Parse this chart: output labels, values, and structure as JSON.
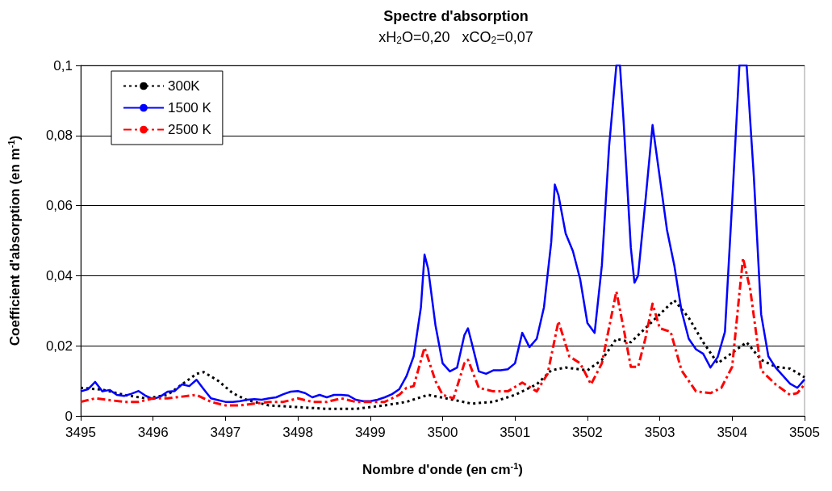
{
  "chart_data": {
    "type": "line",
    "title": "Spectre d'absorption",
    "subtitle": "xH$_{2}$O=0,20   xCO$_{2}$=0,07",
    "xlabel": "Nombre d'onde (en cm$^{-1}$)",
    "ylabel": "Coefficient d'absorption (en m$^{-1}$)",
    "xlim": [
      3495,
      3505
    ],
    "xticks": [
      3495,
      3496,
      3497,
      3498,
      3499,
      3500,
      3501,
      3502,
      3503,
      3504,
      3505
    ],
    "ylim": [
      0,
      0.1
    ],
    "yticks": [
      {
        "value": 0,
        "label": "0"
      },
      {
        "value": 0.02,
        "label": "0,02"
      },
      {
        "value": 0.04,
        "label": "0,04"
      },
      {
        "value": 0.06,
        "label": "0,06"
      },
      {
        "value": 0.08,
        "label": "0,08"
      },
      {
        "value": 0.1,
        "label": "0,1"
      }
    ],
    "grid": "y",
    "legend": "top left",
    "marker": "none",
    "series": [
      {
        "name": "300K",
        "color": "#000000",
        "line_style": "dotted",
        "x": [
          3495,
          3495.3,
          3495.6,
          3495.9,
          3496.2,
          3496.4,
          3496.6,
          3496.7,
          3496.9,
          3497.1,
          3497.3,
          3497.6,
          3498,
          3498.4,
          3498.8,
          3499.2,
          3499.5,
          3499.8,
          3500.1,
          3500.4,
          3500.7,
          3501,
          3501.3,
          3501.5,
          3501.7,
          3502,
          3502.2,
          3502.4,
          3502.6,
          3502.8,
          3503,
          3503.2,
          3503.4,
          3503.6,
          3503.8,
          3504,
          3504.2,
          3504.4,
          3504.6,
          3504.8,
          3505
        ],
        "values": [
          0.008,
          0.0075,
          0.006,
          0.005,
          0.006,
          0.009,
          0.012,
          0.0125,
          0.01,
          0.0065,
          0.0045,
          0.003,
          0.0025,
          0.002,
          0.002,
          0.003,
          0.004,
          0.006,
          0.0048,
          0.0035,
          0.004,
          0.006,
          0.009,
          0.013,
          0.0138,
          0.013,
          0.016,
          0.022,
          0.021,
          0.025,
          0.029,
          0.033,
          0.028,
          0.021,
          0.015,
          0.018,
          0.021,
          0.016,
          0.014,
          0.0135,
          0.011
        ]
      },
      {
        "name": "1500 K",
        "color": "#0000ff",
        "line_style": "solid",
        "x": [
          3495,
          3495.1,
          3495.2,
          3495.3,
          3495.4,
          3495.5,
          3495.6,
          3495.7,
          3495.8,
          3495.9,
          3496,
          3496.1,
          3496.2,
          3496.3,
          3496.4,
          3496.5,
          3496.6,
          3496.7,
          3496.8,
          3496.9,
          3497,
          3497.1,
          3497.2,
          3497.3,
          3497.4,
          3497.5,
          3497.6,
          3497.7,
          3497.8,
          3497.9,
          3498,
          3498.1,
          3498.2,
          3498.3,
          3498.4,
          3498.5,
          3498.6,
          3498.7,
          3498.8,
          3498.9,
          3499,
          3499.1,
          3499.2,
          3499.3,
          3499.4,
          3499.5,
          3499.6,
          3499.7,
          3499.75,
          3499.8,
          3499.9,
          3500,
          3500.1,
          3500.2,
          3500.3,
          3500.35,
          3500.4,
          3500.5,
          3500.6,
          3500.7,
          3500.8,
          3500.9,
          3501,
          3501.1,
          3501.2,
          3501.3,
          3501.4,
          3501.5,
          3501.55,
          3501.6,
          3501.7,
          3501.8,
          3501.9,
          3502,
          3502.1,
          3502.2,
          3502.3,
          3502.4,
          3502.45,
          3502.5,
          3502.6,
          3502.65,
          3502.7,
          3502.8,
          3502.9,
          3503,
          3503.1,
          3503.2,
          3503.3,
          3503.4,
          3503.5,
          3503.6,
          3503.7,
          3503.8,
          3503.9,
          3504,
          3504.1,
          3504.2,
          3504.3,
          3504.4,
          3504.5,
          3504.6,
          3504.7,
          3504.8,
          3504.9,
          3505
        ],
        "values": [
          0.007,
          0.0076,
          0.0097,
          0.007,
          0.0074,
          0.006,
          0.0057,
          0.0063,
          0.0071,
          0.0057,
          0.0048,
          0.0055,
          0.0069,
          0.0071,
          0.009,
          0.0085,
          0.0103,
          0.0076,
          0.005,
          0.0045,
          0.004,
          0.004,
          0.0042,
          0.0046,
          0.0048,
          0.0046,
          0.005,
          0.0053,
          0.0062,
          0.0069,
          0.0071,
          0.0065,
          0.0053,
          0.006,
          0.0053,
          0.006,
          0.006,
          0.0058,
          0.0046,
          0.0042,
          0.0042,
          0.0046,
          0.0053,
          0.0062,
          0.0076,
          0.0113,
          0.017,
          0.031,
          0.046,
          0.042,
          0.026,
          0.015,
          0.0127,
          0.0138,
          0.023,
          0.025,
          0.021,
          0.0127,
          0.012,
          0.013,
          0.013,
          0.0133,
          0.015,
          0.0237,
          0.0196,
          0.022,
          0.031,
          0.0495,
          0.066,
          0.063,
          0.052,
          0.047,
          0.039,
          0.0265,
          0.0237,
          0.043,
          0.077,
          0.1,
          0.1,
          0.084,
          0.048,
          0.038,
          0.04,
          0.061,
          0.083,
          0.068,
          0.053,
          0.043,
          0.03,
          0.022,
          0.019,
          0.0177,
          0.0138,
          0.0168,
          0.024,
          0.061,
          0.1,
          0.1,
          0.068,
          0.029,
          0.017,
          0.0138,
          0.0115,
          0.0092,
          0.008,
          0.0104
        ]
      },
      {
        "name": "2500 K",
        "color": "#ff0000",
        "line_style": "dashed",
        "x": [
          3495,
          3495.2,
          3495.4,
          3495.6,
          3495.8,
          3496,
          3496.2,
          3496.4,
          3496.6,
          3496.8,
          3497,
          3497.2,
          3497.4,
          3497.6,
          3497.8,
          3498,
          3498.2,
          3498.4,
          3498.6,
          3498.8,
          3499,
          3499.2,
          3499.4,
          3499.5,
          3499.6,
          3499.75,
          3499.9,
          3500,
          3500.15,
          3500.3,
          3500.35,
          3500.5,
          3500.7,
          3500.9,
          3501.1,
          3501.3,
          3501.45,
          3501.6,
          3501.75,
          3501.9,
          3502.05,
          3502.2,
          3502.4,
          3502.5,
          3502.6,
          3502.7,
          3502.8,
          3502.9,
          3503,
          3503.15,
          3503.3,
          3503.5,
          3503.7,
          3503.85,
          3504,
          3504.1,
          3504.15,
          3504.25,
          3504.4,
          3504.6,
          3504.8,
          3504.9,
          3505
        ],
        "values": [
          0.004,
          0.005,
          0.0045,
          0.004,
          0.004,
          0.005,
          0.005,
          0.0055,
          0.006,
          0.004,
          0.003,
          0.003,
          0.0035,
          0.004,
          0.004,
          0.005,
          0.004,
          0.004,
          0.005,
          0.004,
          0.004,
          0.004,
          0.006,
          0.008,
          0.0085,
          0.0195,
          0.01,
          0.006,
          0.005,
          0.015,
          0.016,
          0.008,
          0.007,
          0.007,
          0.0095,
          0.007,
          0.012,
          0.027,
          0.017,
          0.015,
          0.009,
          0.015,
          0.0355,
          0.025,
          0.014,
          0.014,
          0.022,
          0.032,
          0.025,
          0.024,
          0.013,
          0.007,
          0.0065,
          0.008,
          0.014,
          0.035,
          0.045,
          0.036,
          0.013,
          0.009,
          0.006,
          0.0065,
          0.009
        ]
      }
    ]
  }
}
